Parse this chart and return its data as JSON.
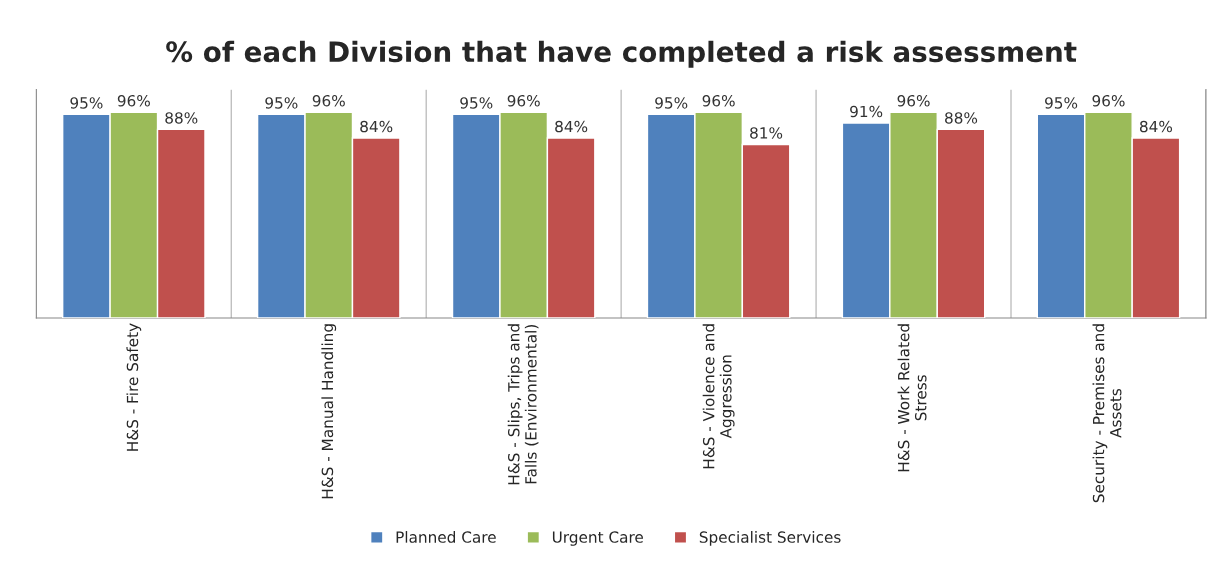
{
  "chart_data": {
    "type": "bar",
    "title": "% of each Division that have completed a risk assessment",
    "categories": [
      "H&S - Fire Safety",
      "H&S - Manual Handling",
      "H&S - Slips, Trips and Falls (Environmental)",
      "H&S - Violence and Aggression",
      "H&S - Work Related Stress",
      "Security - Premises and Assets"
    ],
    "series": [
      {
        "name": "Planned Care",
        "color": "#4f81bd",
        "values": [
          95,
          95,
          95,
          95,
          91,
          95
        ],
        "value_labels": [
          "95%",
          "95%",
          "95%",
          "95%",
          "91%",
          "95%"
        ]
      },
      {
        "name": "Urgent Care",
        "color": "#9bbb59",
        "values": [
          96,
          96,
          96,
          96,
          96,
          96
        ],
        "value_labels": [
          "96%",
          "96%",
          "96%",
          "96%",
          "96%",
          "96%"
        ]
      },
      {
        "name": "Specialist Services",
        "color": "#c0504d",
        "values": [
          88,
          84,
          84,
          81,
          88,
          84
        ],
        "value_labels": [
          "88%",
          "84%",
          "84%",
          "81%",
          "88%",
          "84%"
        ]
      }
    ],
    "grid": "x",
    "legend": "bottom",
    "tick_labels": "x"
  }
}
